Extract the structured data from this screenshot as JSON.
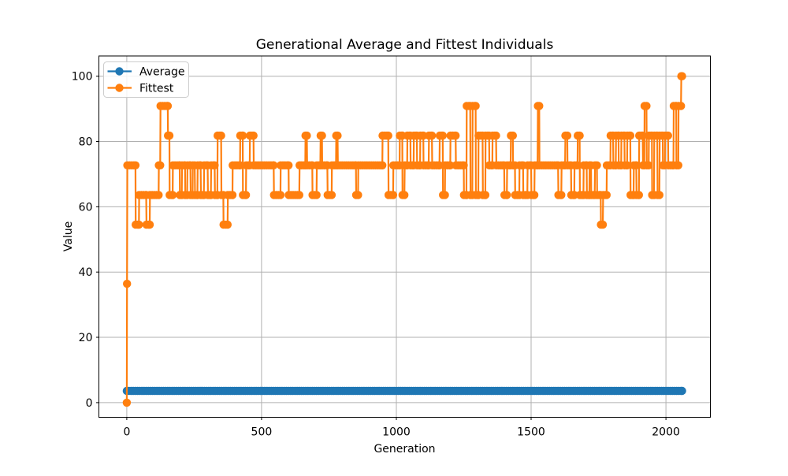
{
  "chart_data": {
    "type": "line",
    "title": "Generational Average and Fittest Individuals",
    "xlabel": "Generation",
    "ylabel": "Value",
    "xticks": [
      0,
      500,
      1000,
      1500,
      2000
    ],
    "yticks": [
      0,
      20,
      40,
      60,
      80,
      100
    ],
    "xlim": [
      -103.5,
      2165
    ],
    "ylim": [
      -4.5,
      106.2
    ],
    "grid": true,
    "legend": {
      "position": "upper left"
    },
    "runs_format": "[start_generation, end_generation, value]",
    "series": [
      {
        "name": "Average",
        "color": "#1f77b4",
        "marker": "o",
        "runs": [
          [
            0,
            2060,
            3.6
          ]
        ]
      },
      {
        "name": "Fittest",
        "color": "#ff7f0e",
        "marker": "o",
        "runs": [
          [
            0,
            0,
            0
          ],
          [
            1,
            1,
            36.4
          ],
          [
            2,
            32,
            72.7
          ],
          [
            33,
            45,
            54.5
          ],
          [
            46,
            72,
            63.6
          ],
          [
            73,
            85,
            54.5
          ],
          [
            86,
            118,
            63.6
          ],
          [
            119,
            124,
            72.7
          ],
          [
            125,
            152,
            90.9
          ],
          [
            153,
            158,
            81.8
          ],
          [
            159,
            170,
            63.6
          ],
          [
            171,
            196,
            72.7
          ],
          [
            197,
            204,
            63.6
          ],
          [
            205,
            216,
            72.7
          ],
          [
            217,
            224,
            63.6
          ],
          [
            225,
            236,
            72.7
          ],
          [
            237,
            244,
            63.6
          ],
          [
            245,
            252,
            72.7
          ],
          [
            253,
            262,
            63.6
          ],
          [
            263,
            274,
            72.7
          ],
          [
            275,
            286,
            63.6
          ],
          [
            287,
            300,
            72.7
          ],
          [
            301,
            312,
            63.6
          ],
          [
            313,
            326,
            72.7
          ],
          [
            327,
            336,
            63.6
          ],
          [
            337,
            350,
            81.8
          ],
          [
            351,
            358,
            63.6
          ],
          [
            359,
            374,
            54.5
          ],
          [
            375,
            392,
            63.6
          ],
          [
            393,
            420,
            72.7
          ],
          [
            421,
            430,
            81.8
          ],
          [
            431,
            442,
            63.6
          ],
          [
            443,
            456,
            72.7
          ],
          [
            457,
            470,
            81.8
          ],
          [
            471,
            545,
            72.7
          ],
          [
            546,
            570,
            63.6
          ],
          [
            571,
            600,
            72.7
          ],
          [
            601,
            640,
            63.6
          ],
          [
            641,
            662,
            72.7
          ],
          [
            663,
            668,
            81.8
          ],
          [
            669,
            688,
            72.7
          ],
          [
            689,
            704,
            63.6
          ],
          [
            705,
            718,
            72.7
          ],
          [
            719,
            724,
            81.8
          ],
          [
            725,
            744,
            72.7
          ],
          [
            745,
            760,
            63.6
          ],
          [
            761,
            776,
            72.7
          ],
          [
            777,
            782,
            81.8
          ],
          [
            783,
            850,
            72.7
          ],
          [
            851,
            858,
            63.6
          ],
          [
            859,
            948,
            72.7
          ],
          [
            949,
            970,
            81.8
          ],
          [
            971,
            988,
            63.6
          ],
          [
            989,
            1012,
            72.7
          ],
          [
            1013,
            1022,
            81.8
          ],
          [
            1023,
            1030,
            63.6
          ],
          [
            1031,
            1040,
            72.7
          ],
          [
            1041,
            1052,
            81.8
          ],
          [
            1053,
            1064,
            72.7
          ],
          [
            1065,
            1076,
            81.8
          ],
          [
            1077,
            1088,
            72.7
          ],
          [
            1089,
            1100,
            81.8
          ],
          [
            1101,
            1120,
            72.7
          ],
          [
            1121,
            1132,
            81.8
          ],
          [
            1133,
            1160,
            72.7
          ],
          [
            1161,
            1172,
            81.8
          ],
          [
            1173,
            1180,
            63.6
          ],
          [
            1181,
            1200,
            72.7
          ],
          [
            1201,
            1220,
            81.8
          ],
          [
            1221,
            1250,
            72.7
          ],
          [
            1251,
            1260,
            63.6
          ],
          [
            1261,
            1274,
            90.9
          ],
          [
            1275,
            1282,
            63.6
          ],
          [
            1283,
            1294,
            90.9
          ],
          [
            1295,
            1304,
            63.6
          ],
          [
            1305,
            1320,
            81.8
          ],
          [
            1321,
            1330,
            63.6
          ],
          [
            1331,
            1344,
            81.8
          ],
          [
            1345,
            1356,
            72.7
          ],
          [
            1357,
            1370,
            81.8
          ],
          [
            1371,
            1400,
            72.7
          ],
          [
            1401,
            1410,
            63.6
          ],
          [
            1411,
            1424,
            72.7
          ],
          [
            1425,
            1432,
            81.8
          ],
          [
            1433,
            1440,
            72.7
          ],
          [
            1441,
            1456,
            63.6
          ],
          [
            1457,
            1470,
            72.7
          ],
          [
            1471,
            1486,
            63.6
          ],
          [
            1487,
            1500,
            72.7
          ],
          [
            1501,
            1512,
            63.6
          ],
          [
            1513,
            1524,
            72.7
          ],
          [
            1525,
            1530,
            90.9
          ],
          [
            1531,
            1600,
            72.7
          ],
          [
            1601,
            1612,
            63.6
          ],
          [
            1613,
            1626,
            72.7
          ],
          [
            1627,
            1634,
            81.8
          ],
          [
            1635,
            1648,
            72.7
          ],
          [
            1649,
            1660,
            63.6
          ],
          [
            1661,
            1672,
            72.7
          ],
          [
            1673,
            1680,
            81.8
          ],
          [
            1681,
            1694,
            63.6
          ],
          [
            1695,
            1706,
            72.7
          ],
          [
            1707,
            1716,
            63.6
          ],
          [
            1717,
            1722,
            72.7
          ],
          [
            1723,
            1736,
            63.6
          ],
          [
            1737,
            1744,
            72.7
          ],
          [
            1745,
            1758,
            63.6
          ],
          [
            1759,
            1766,
            54.5
          ],
          [
            1767,
            1780,
            63.6
          ],
          [
            1781,
            1794,
            72.7
          ],
          [
            1795,
            1804,
            81.8
          ],
          [
            1805,
            1814,
            72.7
          ],
          [
            1815,
            1824,
            81.8
          ],
          [
            1825,
            1834,
            72.7
          ],
          [
            1835,
            1846,
            81.8
          ],
          [
            1847,
            1856,
            72.7
          ],
          [
            1857,
            1868,
            81.8
          ],
          [
            1869,
            1880,
            63.6
          ],
          [
            1881,
            1890,
            72.7
          ],
          [
            1891,
            1900,
            63.6
          ],
          [
            1901,
            1914,
            81.8
          ],
          [
            1915,
            1920,
            72.7
          ],
          [
            1921,
            1928,
            90.9
          ],
          [
            1929,
            1936,
            72.7
          ],
          [
            1937,
            1948,
            81.8
          ],
          [
            1949,
            1956,
            63.6
          ],
          [
            1957,
            1968,
            81.8
          ],
          [
            1969,
            1976,
            63.6
          ],
          [
            1977,
            1988,
            81.8
          ],
          [
            1989,
            1996,
            72.7
          ],
          [
            1997,
            2008,
            81.8
          ],
          [
            2009,
            2028,
            72.7
          ],
          [
            2029,
            2038,
            90.9
          ],
          [
            2039,
            2046,
            72.7
          ],
          [
            2047,
            2056,
            90.9
          ],
          [
            2057,
            2060,
            100
          ]
        ]
      }
    ]
  }
}
